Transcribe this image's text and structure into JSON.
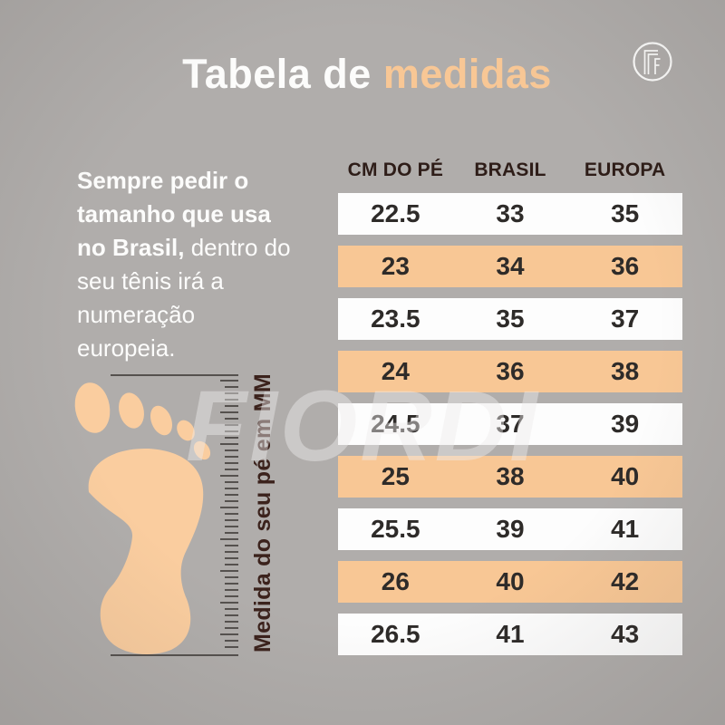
{
  "title": {
    "prefix": "Tabela de ",
    "highlight": "medidas"
  },
  "logo": {
    "monogram": "FF"
  },
  "intro": {
    "lines": [
      {
        "bold": "Sempre pedir o"
      },
      {
        "bold": "tamanho que usa"
      },
      {
        "bold": "no Brasil,",
        "regular": " dentro do"
      },
      {
        "regular": "seu tênis irá a"
      },
      {
        "regular": "numeração"
      },
      {
        "regular": "europeia."
      }
    ]
  },
  "ruler": {
    "label": "Medida do seu pé em MM"
  },
  "watermark": "FIORDI",
  "table": {
    "headers": [
      "CM DO PÉ",
      "BRASIL",
      "EUROPA"
    ],
    "rows": [
      [
        "22.5",
        "33",
        "35"
      ],
      [
        "23",
        "34",
        "36"
      ],
      [
        "23.5",
        "35",
        "37"
      ],
      [
        "24",
        "36",
        "38"
      ],
      [
        "24.5",
        "37",
        "39"
      ],
      [
        "25",
        "38",
        "40"
      ],
      [
        "25.5",
        "39",
        "41"
      ],
      [
        "26",
        "40",
        "42"
      ],
      [
        "26.5",
        "41",
        "43"
      ]
    ]
  },
  "chart_data": {
    "type": "table",
    "title": "Tabela de medidas",
    "columns": [
      "CM DO PÉ",
      "BRASIL",
      "EUROPA"
    ],
    "rows": [
      [
        22.5,
        33,
        35
      ],
      [
        23,
        34,
        36
      ],
      [
        23.5,
        35,
        37
      ],
      [
        24,
        36,
        38
      ],
      [
        24.5,
        37,
        39
      ],
      [
        25,
        38,
        40
      ],
      [
        25.5,
        39,
        41
      ],
      [
        26,
        40,
        42
      ],
      [
        26.5,
        41,
        43
      ]
    ],
    "layout_hints": "rows alternate white and peach backgrounds starting with white; gray page background"
  },
  "colors": {
    "background": "#B0ADAB",
    "peach": "#F8C795",
    "foot": "#FACD9F",
    "title_white": "#FCFCFB",
    "header_text": "#2E1D18",
    "row_text": "#2E2B29",
    "ruler_tick": "#55514E",
    "vertical_label_text": "#3B221C",
    "watermark": "rgba(238,236,234,0.45)"
  }
}
